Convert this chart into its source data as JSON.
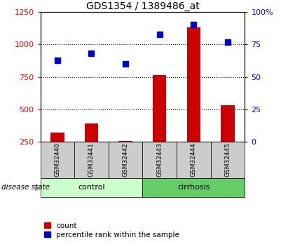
{
  "title": "GDS1354 / 1389486_at",
  "samples": [
    "GSM32440",
    "GSM32441",
    "GSM32442",
    "GSM32443",
    "GSM32444",
    "GSM32445"
  ],
  "count_values": [
    320,
    390,
    255,
    765,
    1130,
    530
  ],
  "percentile_values": [
    880,
    930,
    850,
    1080,
    1155,
    1020
  ],
  "left_ylim": [
    250,
    1250
  ],
  "left_yticks": [
    250,
    500,
    750,
    1000,
    1250
  ],
  "right_ylim": [
    0,
    100
  ],
  "right_yticks": [
    0,
    25,
    50,
    75,
    100
  ],
  "right_yticklabels": [
    "0",
    "25",
    "50",
    "75",
    "100%"
  ],
  "bar_color": "#cc0000",
  "dot_color": "#0000cc",
  "control_bg": "#ccffcc",
  "cirrhosis_bg": "#66cc66",
  "sample_bg": "#cccccc",
  "dotted_lines": [
    500,
    750,
    1000
  ],
  "legend_count_label": "count",
  "legend_percentile_label": "percentile rank within the sample",
  "group_label": "disease state",
  "control_label": "control",
  "cirrhosis_label": "cirrhosis",
  "title_fontsize": 10,
  "tick_fontsize": 8,
  "sample_fontsize": 6.5,
  "group_fontsize": 8,
  "legend_fontsize": 7.5,
  "bar_width": 0.4
}
